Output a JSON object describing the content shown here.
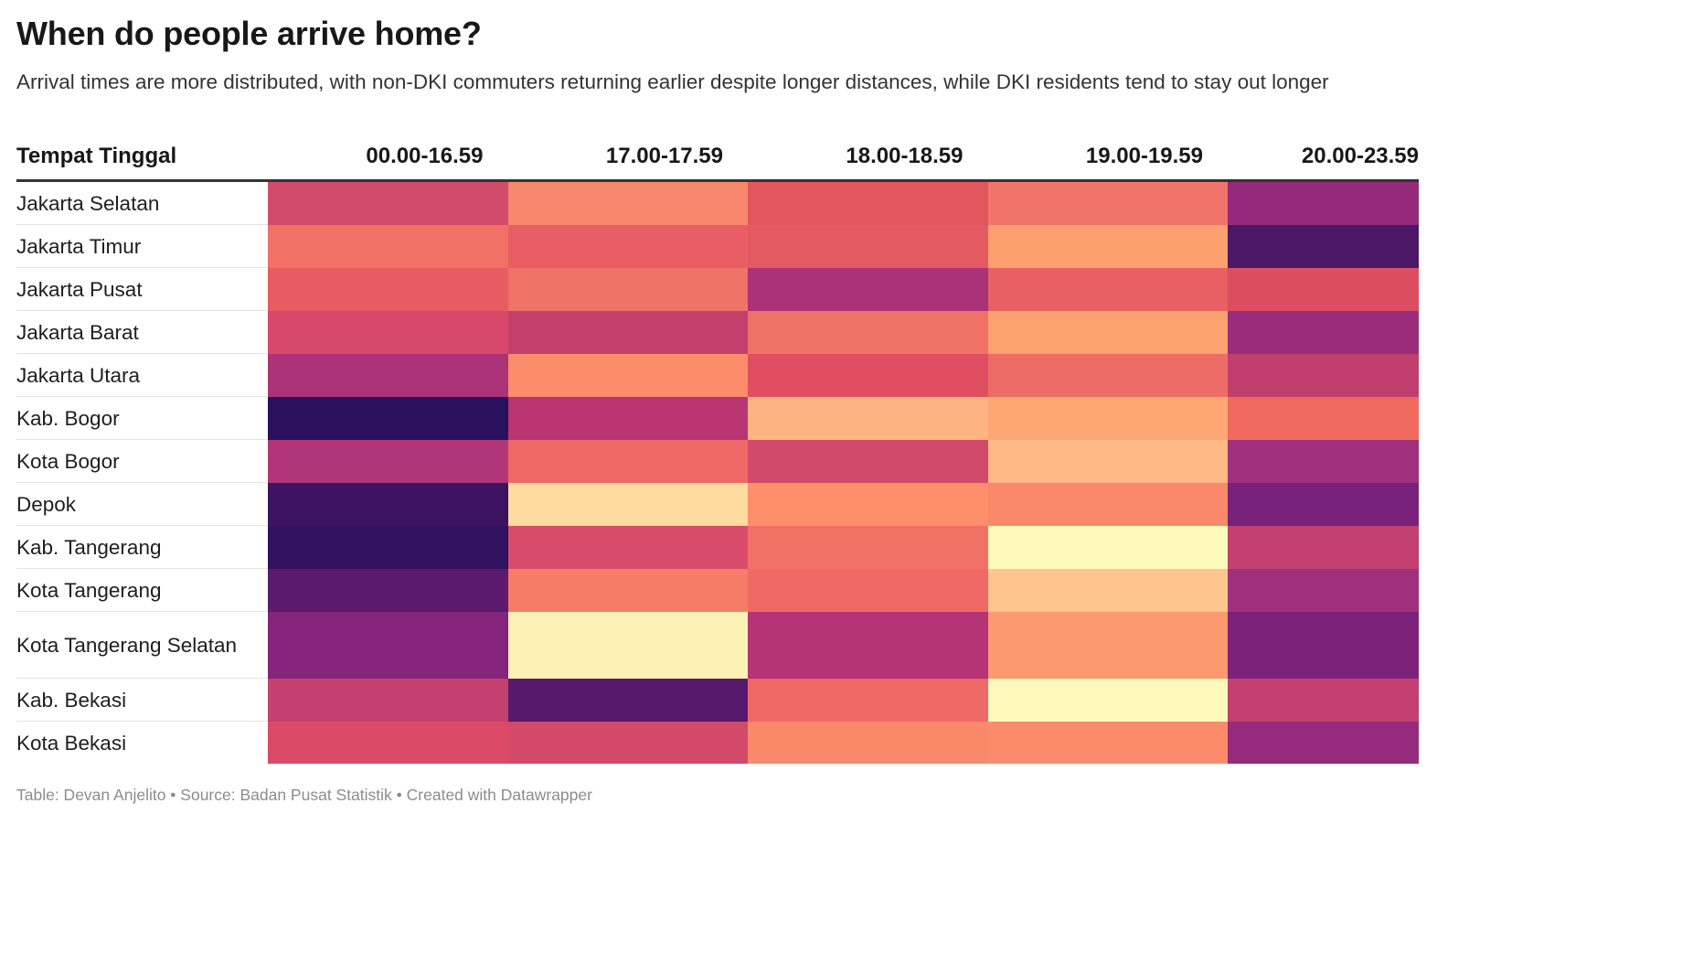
{
  "title": "When do people arrive home?",
  "subtitle": "Arrival times are more distributed, with non-DKI commuters returning earlier despite longer distances, while DKI residents tend to stay out longer",
  "notes": "Table: Devan Anjelito • Source: Badan Pusat Statistik • Created with Datawrapper",
  "chart_data": {
    "type": "heatmap",
    "title": "When do people arrive home?",
    "row_header": "Tempat Tinggal",
    "columns": [
      "00.00-16.59",
      "17.00-17.59",
      "18.00-18.59",
      "19.00-19.59",
      "20.00-23.59"
    ],
    "rows": [
      {
        "name": "Jakarta Selatan",
        "tall": false,
        "colors": [
          "#d34b6a",
          "#f7876a",
          "#e3555f",
          "#f0746a",
          "#952a7b"
        ]
      },
      {
        "name": "Jakarta Timur",
        "tall": false,
        "colors": [
          "#f17166",
          "#e95e64",
          "#e35a61",
          "#fca070",
          "#4c1767"
        ]
      },
      {
        "name": "Jakarta Pusat",
        "tall": false,
        "colors": [
          "#e95b63",
          "#ef7367",
          "#ab3178",
          "#e86064",
          "#dc4d62"
        ]
      },
      {
        "name": "Jakarta Barat",
        "tall": false,
        "colors": [
          "#d8486a",
          "#c3406d",
          "#f07267",
          "#fca170",
          "#9a2c7b"
        ]
      },
      {
        "name": "Jakarta Utara",
        "tall": false,
        "colors": [
          "#ac3279",
          "#fd8c6a",
          "#e04f61",
          "#ee6c66",
          "#c13f6e"
        ]
      },
      {
        "name": "Kab. Bogor",
        "tall": false,
        "colors": [
          "#2a115e",
          "#b83572",
          "#feb481",
          "#fda774",
          "#f06a5f"
        ]
      },
      {
        "name": "Kota Bogor",
        "tall": false,
        "colors": [
          "#b13579",
          "#ee6966",
          "#d14a6a",
          "#feb986",
          "#a1307c"
        ]
      },
      {
        "name": "Depok",
        "tall": false,
        "colors": [
          "#3d1462",
          "#fedb9f",
          "#fd8f6a",
          "#f9896a",
          "#78227b"
        ]
      },
      {
        "name": "Kab. Tangerang",
        "tall": false,
        "colors": [
          "#311260",
          "#d84b6a",
          "#f17167",
          "#fcfabb",
          "#c2406e"
        ]
      },
      {
        "name": "Kota Tangerang",
        "tall": false,
        "colors": [
          "#5b1a6d",
          "#f67c68",
          "#ef6a65",
          "#fec58f",
          "#a1307c"
        ]
      },
      {
        "name": "Kota Tangerang Selatan",
        "tall": true,
        "colors": [
          "#86247b",
          "#fdf1b6",
          "#b43475",
          "#fb9a6f",
          "#7c227b"
        ]
      },
      {
        "name": "Kab. Bekasi",
        "tall": false,
        "colors": [
          "#c4406f",
          "#57196c",
          "#ee6966",
          "#fdf9bb",
          "#c2406e"
        ]
      },
      {
        "name": "Kota Bekasi",
        "tall": false,
        "colors": [
          "#db4a66",
          "#d24a68",
          "#f88a6a",
          "#fb8b6a",
          "#962b7c"
        ]
      }
    ]
  }
}
